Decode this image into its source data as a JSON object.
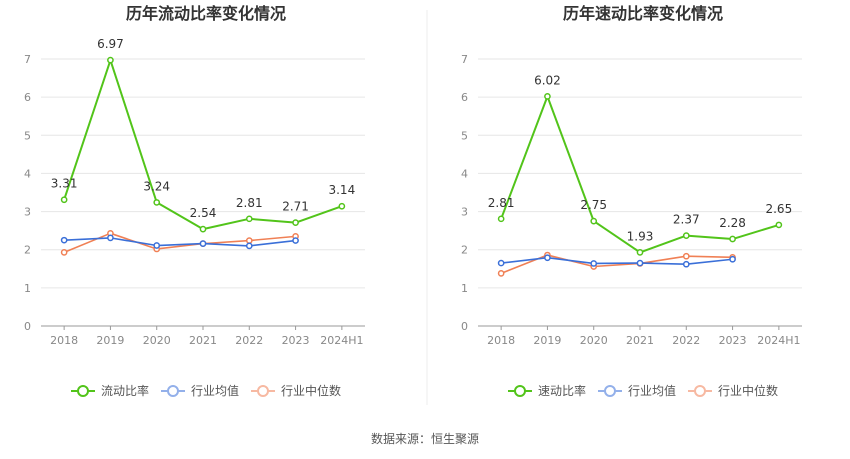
{
  "source_label": "数据来源：恒生聚源",
  "chart_data": [
    {
      "type": "line",
      "title": "历年流动比率变化情况",
      "categories": [
        "2018",
        "2019",
        "2020",
        "2021",
        "2022",
        "2023",
        "2024H1"
      ],
      "ylim": [
        0,
        7
      ],
      "yticks": [
        "0",
        "1",
        "2",
        "3",
        "4",
        "5",
        "6",
        "7"
      ],
      "grid": true,
      "legend_position": "bottom",
      "series": [
        {
          "name": "流动比率",
          "color": "#52c41a",
          "values": [
            3.31,
            6.97,
            3.24,
            2.54,
            2.81,
            2.71,
            3.14
          ],
          "labels": [
            "3.31",
            "6.97",
            "3.24",
            "2.54",
            "2.81",
            "2.71",
            "3.14"
          ]
        },
        {
          "name": "行业均值",
          "color": "#3a6fd8",
          "values": [
            2.25,
            2.31,
            2.11,
            2.16,
            2.1,
            2.24,
            null
          ]
        },
        {
          "name": "行业中位数",
          "color": "#f08055",
          "values": [
            1.93,
            2.43,
            2.02,
            2.16,
            2.24,
            2.35,
            null
          ]
        }
      ]
    },
    {
      "type": "line",
      "title": "历年速动比率变化情况",
      "categories": [
        "2018",
        "2019",
        "2020",
        "2021",
        "2022",
        "2023",
        "2024H1"
      ],
      "ylim": [
        0,
        7
      ],
      "yticks": [
        "0",
        "1",
        "2",
        "3",
        "4",
        "5",
        "6",
        "7"
      ],
      "grid": true,
      "legend_position": "bottom",
      "series": [
        {
          "name": "速动比率",
          "color": "#52c41a",
          "values": [
            2.81,
            6.02,
            2.75,
            1.93,
            2.37,
            2.28,
            2.65
          ],
          "labels": [
            "2.81",
            "6.02",
            "2.75",
            "1.93",
            "2.37",
            "2.28",
            "2.65"
          ]
        },
        {
          "name": "行业均值",
          "color": "#3a6fd8",
          "values": [
            1.65,
            1.79,
            1.64,
            1.65,
            1.62,
            1.75,
            null
          ]
        },
        {
          "name": "行业中位数",
          "color": "#f08055",
          "values": [
            1.38,
            1.86,
            1.56,
            1.64,
            1.83,
            1.8,
            null
          ]
        }
      ]
    }
  ]
}
